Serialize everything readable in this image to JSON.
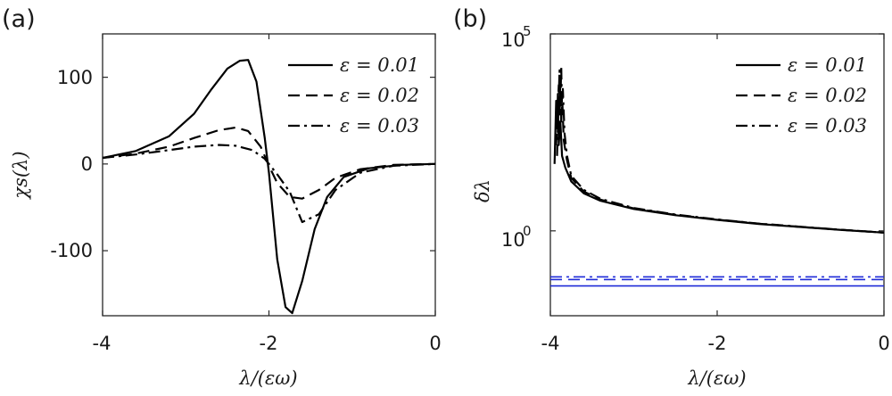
{
  "panels": [
    {
      "tag": "(a)",
      "xlabel": "λ/(εω)",
      "ylabel": "χs(λ)",
      "xticks": [
        "-4",
        "-2",
        "0"
      ],
      "yticks": [
        "100",
        "0",
        "-100"
      ]
    },
    {
      "tag": "(b)",
      "xlabel": "λ/(εω)",
      "ylabel": "δλ",
      "xticks": [
        "-4",
        "-2",
        "0"
      ],
      "yticks_base": [
        "10",
        "10"
      ],
      "yticks_exp": [
        "5",
        "0"
      ]
    }
  ],
  "chart_data": [
    {
      "type": "line",
      "panel": "a",
      "xlabel": "λ/(εω)",
      "ylabel": "χs(λ)",
      "xlim": [
        -4,
        0
      ],
      "ylim": [
        -175,
        150
      ],
      "grid": false,
      "legend_position": "top-right",
      "series": [
        {
          "name": "ε = 0.01",
          "style": "solid",
          "x": [
            -4.0,
            -3.6,
            -3.2,
            -2.9,
            -2.7,
            -2.5,
            -2.35,
            -2.25,
            -2.15,
            -2.05,
            -2.0,
            -1.9,
            -1.8,
            -1.72,
            -1.6,
            -1.45,
            -1.3,
            -1.1,
            -0.8,
            -0.4,
            0.0
          ],
          "y": [
            7,
            15,
            32,
            58,
            85,
            110,
            119,
            120,
            95,
            30,
            -10,
            -110,
            -165,
            -172,
            -135,
            -75,
            -38,
            -15,
            -5,
            -1,
            0
          ]
        },
        {
          "name": "ε = 0.02",
          "style": "dashed",
          "x": [
            -4.0,
            -3.6,
            -3.2,
            -2.9,
            -2.6,
            -2.4,
            -2.25,
            -2.1,
            -2.0,
            -1.9,
            -1.75,
            -1.6,
            -1.4,
            -1.2,
            -0.9,
            -0.5,
            0.0
          ],
          "y": [
            7,
            12,
            20,
            30,
            39,
            42,
            38,
            20,
            -2,
            -22,
            -38,
            -40,
            -30,
            -16,
            -6,
            -1,
            0
          ]
        },
        {
          "name": "ε = 0.03",
          "style": "dash-dot",
          "x": [
            -4.0,
            -3.6,
            -3.2,
            -2.9,
            -2.6,
            -2.4,
            -2.2,
            -2.05,
            -2.0,
            -1.9,
            -1.75,
            -1.6,
            -1.4,
            -1.2,
            -0.9,
            -0.5,
            0.0
          ],
          "y": [
            7,
            11,
            16,
            20,
            22,
            21,
            16,
            6,
            0,
            -12,
            -32,
            -67,
            -58,
            -30,
            -10,
            -2,
            0
          ]
        }
      ]
    },
    {
      "type": "line",
      "panel": "b",
      "xlabel": "λ/(εω)",
      "ylabel": "δλ",
      "xlim": [
        -4,
        0
      ],
      "ylim": [
        0.007,
        100000
      ],
      "yscale": "log",
      "grid": false,
      "legend_position": "top-right",
      "series": [
        {
          "name": "ε = 0.01",
          "style": "solid",
          "color": "#000000",
          "x": [
            -3.95,
            -3.93,
            -3.92,
            -3.91,
            -3.9,
            -3.88,
            -3.86,
            -3.82,
            -3.75,
            -3.6,
            -3.4,
            -3.0,
            -2.5,
            -2.0,
            -1.5,
            -1.0,
            -0.5,
            0.0
          ],
          "y": [
            50,
            2000,
            400,
            3000,
            150,
            600,
            80,
            40,
            18,
            9,
            5.8,
            3.6,
            2.5,
            1.9,
            1.5,
            1.25,
            1.05,
            0.9
          ]
        },
        {
          "name": "ε = 0.02",
          "style": "dashed",
          "color": "#000000",
          "x": [
            -3.93,
            -3.9,
            -3.89,
            -3.88,
            -3.87,
            -3.86,
            -3.84,
            -3.8,
            -3.75,
            -3.6,
            -3.4,
            -3.0,
            -2.5,
            -2.0,
            -1.5,
            -1.0,
            -0.5,
            0.0
          ],
          "y": [
            150,
            5000,
            900,
            8000,
            500,
            3000,
            200,
            60,
            22,
            10,
            6.2,
            3.7,
            2.55,
            1.92,
            1.52,
            1.26,
            1.06,
            0.9
          ]
        },
        {
          "name": "ε = 0.03",
          "style": "dash-dot",
          "color": "#000000",
          "x": [
            -3.92,
            -3.89,
            -3.88,
            -3.87,
            -3.86,
            -3.85,
            -3.83,
            -3.8,
            -3.75,
            -3.6,
            -3.4,
            -3.0,
            -2.5,
            -2.0,
            -1.5,
            -1.0,
            -0.5,
            0.0
          ],
          "y": [
            80,
            12000,
            1500,
            15000,
            900,
            4000,
            300,
            80,
            25,
            11,
            6.5,
            3.8,
            2.6,
            1.95,
            1.53,
            1.27,
            1.06,
            0.9
          ]
        },
        {
          "name": "",
          "style": "solid",
          "color": "#1f2bd8",
          "x": [
            -4,
            0
          ],
          "y": [
            0.04,
            0.04
          ]
        },
        {
          "name": "",
          "style": "dashed",
          "color": "#1f2bd8",
          "x": [
            -4,
            0
          ],
          "y": [
            0.058,
            0.058
          ]
        },
        {
          "name": "",
          "style": "dash-dot",
          "color": "#1f2bd8",
          "x": [
            -4,
            0
          ],
          "y": [
            0.068,
            0.068
          ]
        }
      ]
    }
  ]
}
